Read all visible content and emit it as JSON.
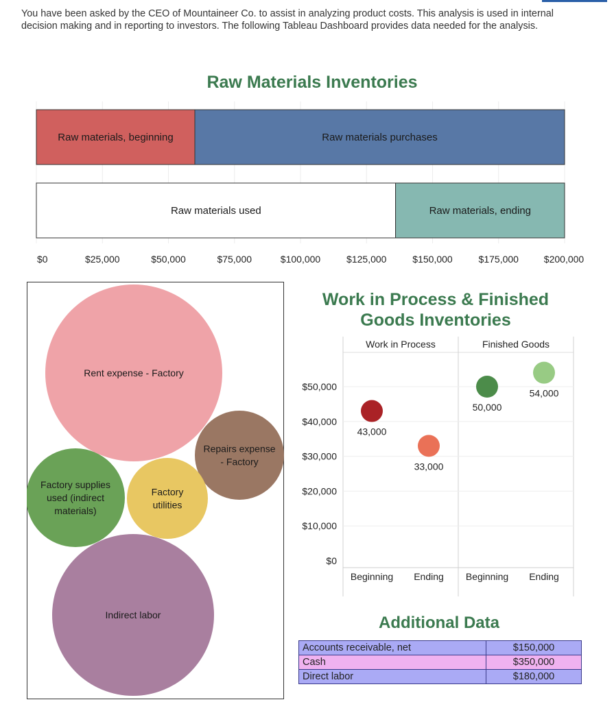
{
  "intro_text": "You have been asked by the CEO of Mountaineer Co. to assist in analyzing product costs. This analysis is used in internal decision making and in reporting to investors. The following Tableau Dashboard provides data needed for the analysis.",
  "colors": {
    "heading_green": "#3b7a4f",
    "raw_beginning": "#d0605e",
    "raw_purchases": "#5878a6",
    "raw_used": "#ffffff",
    "raw_ending": "#86b8b1",
    "wip_beginning": "#aa2226",
    "wip_ending": "#ea7157",
    "fg_beginning": "#4c8c4a",
    "fg_ending": "#98cb84",
    "rent": "#efa3a8",
    "repairs": "#9a7763",
    "supplies": "#6aa257",
    "utilities": "#e8c762",
    "labor": "#a97f9f",
    "ar_row": "#aaaaf5",
    "cash_row": "#f0b2f0",
    "labor_row": "#aaaaf5"
  },
  "chart_data": [
    {
      "type": "bar",
      "orientation": "horizontal-stacked",
      "title": "Raw Materials Inventories",
      "xlim": [
        0,
        200000
      ],
      "tick_labels": [
        "$0",
        "$25,000",
        "$50,000",
        "$75,000",
        "$100,000",
        "$125,000",
        "$150,000",
        "$175,000",
        "$200,000"
      ],
      "rows": [
        {
          "segments": [
            {
              "label": "Raw materials, beginning",
              "value": 60000,
              "color": "#d0605e",
              "text_color": "#1a1a1a"
            },
            {
              "label": "Raw materials purchases",
              "value": 140000,
              "color": "#5878a6",
              "text_color": "#1a1a1a"
            }
          ]
        },
        {
          "segments": [
            {
              "label": "Raw materials used",
              "value": 136000,
              "color": "#ffffff",
              "text_color": "#1a1a1a"
            },
            {
              "label": "Raw materials, ending",
              "value": 64000,
              "color": "#86b8b1",
              "text_color": "#1a1a1a"
            }
          ]
        }
      ]
    },
    {
      "type": "bubble",
      "bubbles": [
        {
          "label": [
            "Rent expense - Factory"
          ],
          "color": "#efa3a8"
        },
        {
          "label": [
            "Repairs expense",
            "- Factory"
          ],
          "color": "#9a7763"
        },
        {
          "label": [
            "Factory supplies",
            "used (indirect",
            "materials)"
          ],
          "color": "#6aa257"
        },
        {
          "label": [
            "Factory",
            "utilities"
          ],
          "color": "#e8c762"
        },
        {
          "label": [
            "Indirect labor"
          ],
          "color": "#a97f9f"
        }
      ]
    },
    {
      "type": "scatter",
      "title": [
        "Work in Process & Finished",
        "Goods Inventories"
      ],
      "panels": [
        "Work in Process",
        "Finished Goods"
      ],
      "x_categories": [
        "Beginning",
        "Ending"
      ],
      "ylim": [
        0,
        50000
      ],
      "y_tick_labels": [
        "$0",
        "$10,000",
        "$20,000",
        "$30,000",
        "$40,000",
        "$50,000"
      ],
      "points": [
        {
          "panel": 0,
          "x": "Beginning",
          "y": 43000,
          "label": "43,000",
          "color": "#aa2226"
        },
        {
          "panel": 0,
          "x": "Ending",
          "y": 33000,
          "label": "33,000",
          "color": "#ea7157"
        },
        {
          "panel": 1,
          "x": "Beginning",
          "y": 50000,
          "label": "50,000",
          "color": "#4c8c4a"
        },
        {
          "panel": 1,
          "x": "Ending",
          "y": 54000,
          "label": "54,000",
          "color": "#98cb84"
        }
      ]
    }
  ],
  "additional_data": {
    "title": "Additional Data",
    "rows": [
      {
        "label": "Accounts receivable, net",
        "value": "$150,000"
      },
      {
        "label": "Cash",
        "value": "$350,000"
      },
      {
        "label": "Direct labor",
        "value": "$180,000"
      }
    ]
  }
}
